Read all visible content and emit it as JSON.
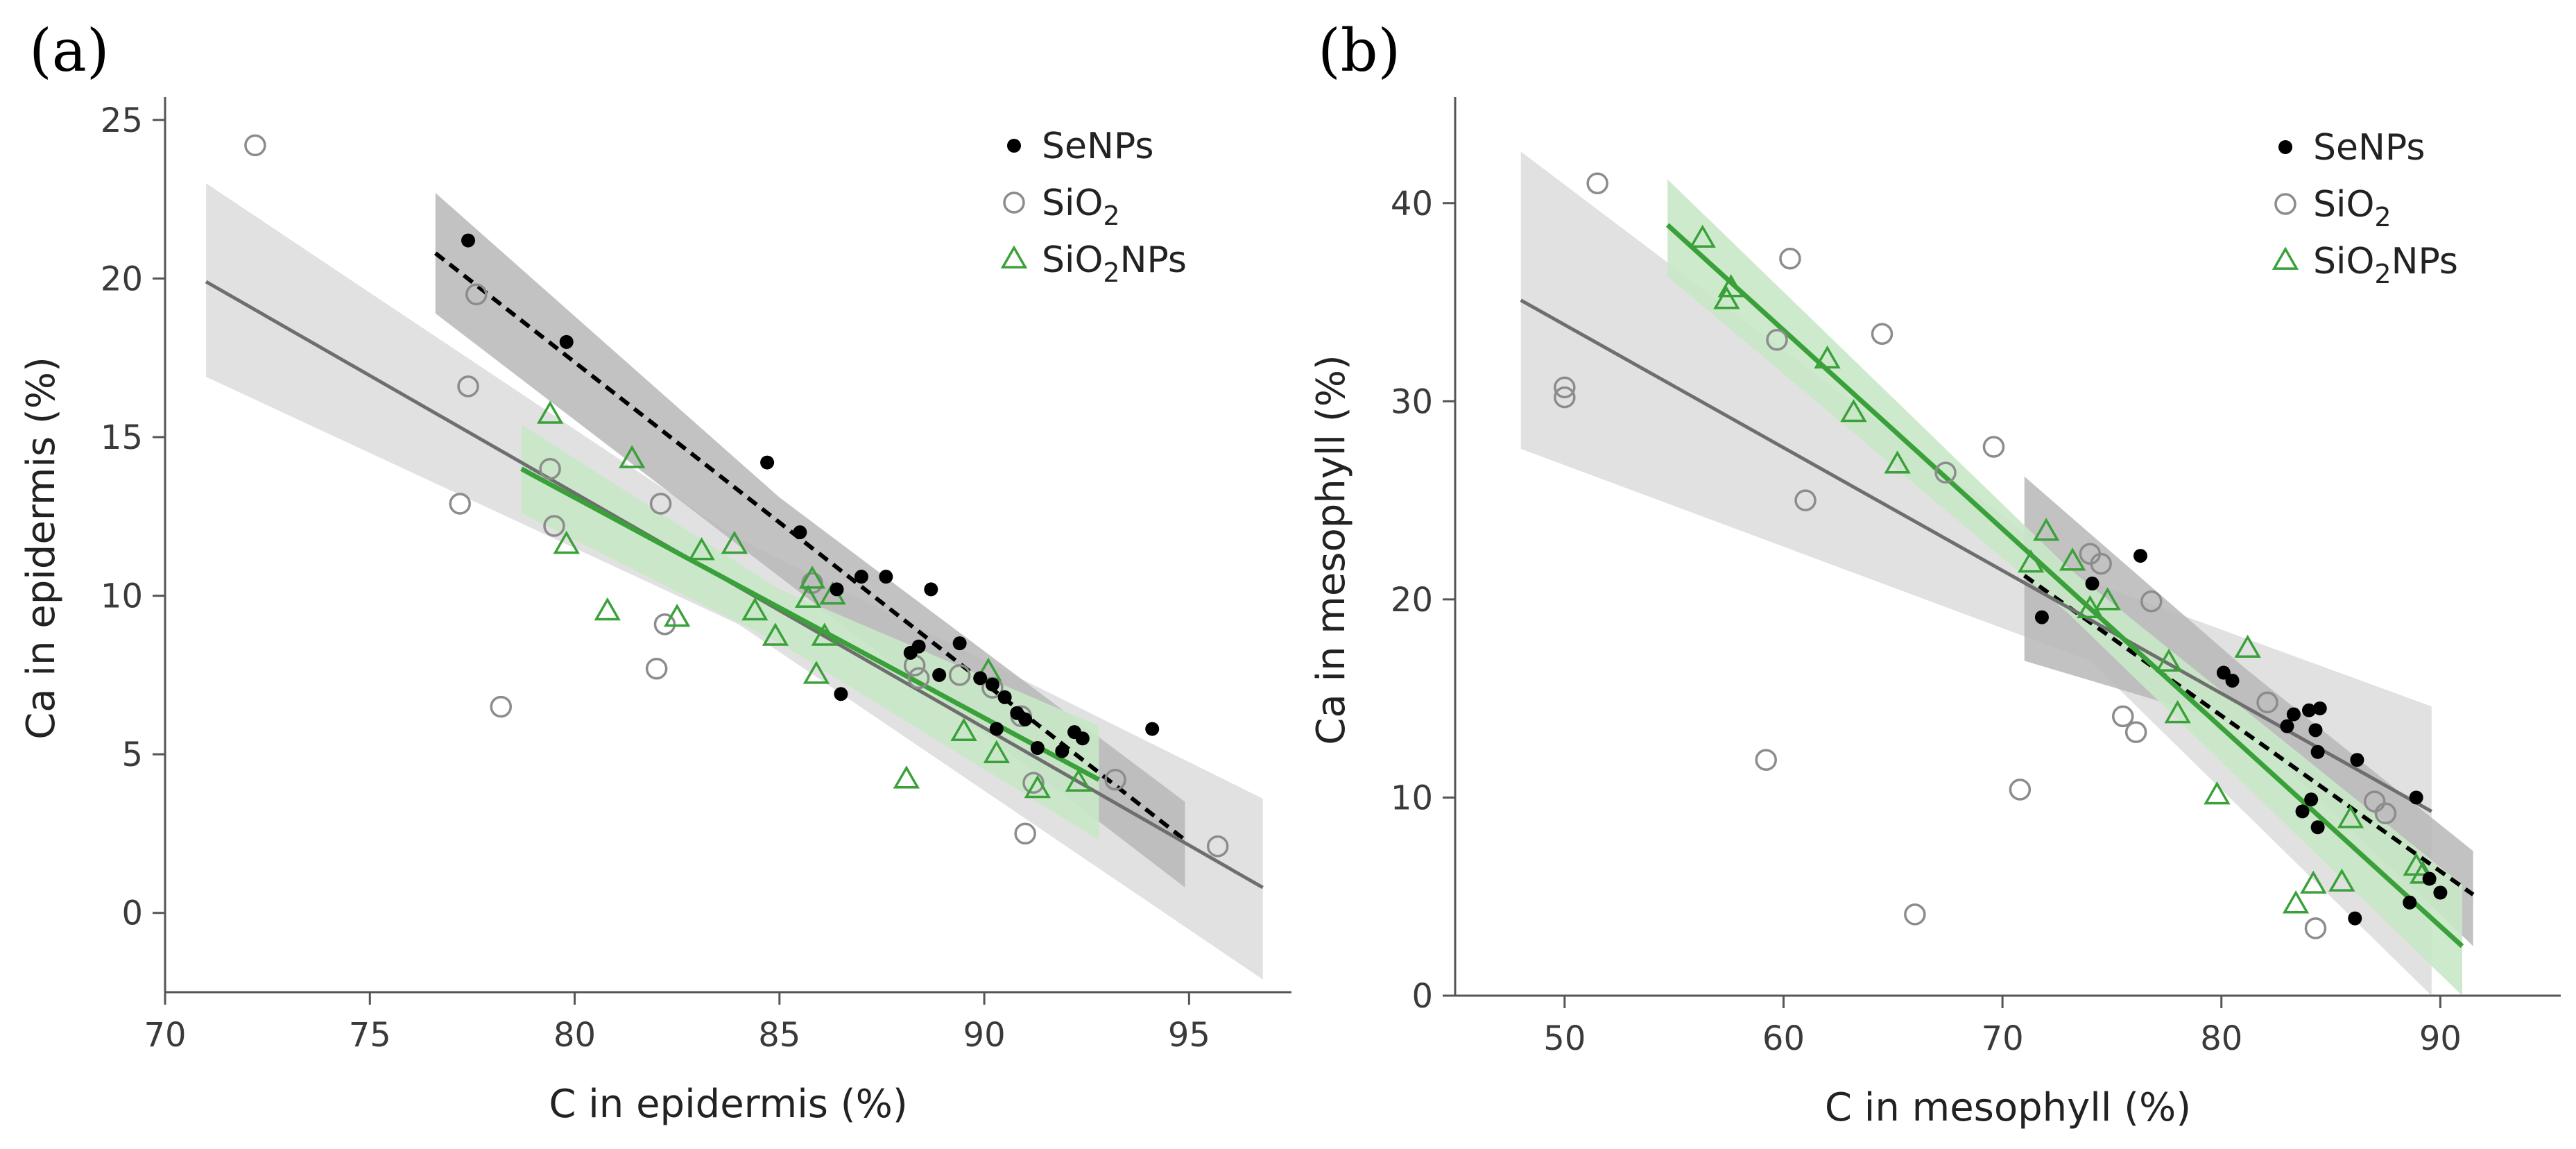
{
  "colors": {
    "senps": "#000000",
    "sio2": "#8c8c8c",
    "sio2nps": "#3aa13a",
    "band_dark": "#b7b7b7",
    "band_light": "#dedede",
    "band_green": "#c9e8c6"
  },
  "chart_data": [
    {
      "type": "scatter",
      "panel_label": "(a)",
      "xlabel": "C in epidermis (%)",
      "ylabel": "Ca in epidermis (%)",
      "xlim": [
        70,
        97.5
      ],
      "ylim": [
        -2.5,
        25.5
      ],
      "xticks": [
        70,
        75,
        80,
        85,
        90,
        95
      ],
      "yticks": [
        0,
        5,
        10,
        15,
        20,
        25
      ],
      "legend_position": "top-right",
      "series": [
        {
          "name": "SeNPs",
          "legend_text": "SeNPs",
          "marker": "filled-circle",
          "color": "#000000",
          "points": [
            [
              77.4,
              21.2
            ],
            [
              79.8,
              18.0
            ],
            [
              84.7,
              14.2
            ],
            [
              85.5,
              12.0
            ],
            [
              86.4,
              10.2
            ],
            [
              86.5,
              6.9
            ],
            [
              87.0,
              10.6
            ],
            [
              87.6,
              10.6
            ],
            [
              88.2,
              8.2
            ],
            [
              88.4,
              8.4
            ],
            [
              88.7,
              10.2
            ],
            [
              88.9,
              7.5
            ],
            [
              89.4,
              8.5
            ],
            [
              89.9,
              7.4
            ],
            [
              90.2,
              7.2
            ],
            [
              90.3,
              5.8
            ],
            [
              90.5,
              6.8
            ],
            [
              90.8,
              6.3
            ],
            [
              91.0,
              6.1
            ],
            [
              91.3,
              5.2
            ],
            [
              91.9,
              5.1
            ],
            [
              92.2,
              5.7
            ],
            [
              92.4,
              5.5
            ],
            [
              94.1,
              5.8
            ]
          ],
          "fit": {
            "style": "dashed",
            "x": [
              76.6,
              94.9
            ],
            "y": [
              20.8,
              2.3
            ]
          },
          "band": {
            "upper": [
              [
                76.6,
                22.7
              ],
              [
                85.0,
                13.1
              ],
              [
                94.9,
                3.5
              ]
            ],
            "lower": [
              [
                94.9,
                0.8
              ],
              [
                85.0,
                10.6
              ],
              [
                76.6,
                18.9
              ]
            ]
          }
        },
        {
          "name": "SiO2",
          "legend_text": "SiO",
          "legend_sub": "2",
          "marker": "open-circle",
          "color": "#8c8c8c",
          "points": [
            [
              72.2,
              24.2
            ],
            [
              77.2,
              12.9
            ],
            [
              77.4,
              16.6
            ],
            [
              77.6,
              19.5
            ],
            [
              78.2,
              6.5
            ],
            [
              79.4,
              14.0
            ],
            [
              79.5,
              12.2
            ],
            [
              82.0,
              7.7
            ],
            [
              82.1,
              12.9
            ],
            [
              82.2,
              9.1
            ],
            [
              85.8,
              10.4
            ],
            [
              88.3,
              7.8
            ],
            [
              88.4,
              7.4
            ],
            [
              89.4,
              7.5
            ],
            [
              90.2,
              7.1
            ],
            [
              90.9,
              6.2
            ],
            [
              91.0,
              2.5
            ],
            [
              91.2,
              4.1
            ],
            [
              93.2,
              4.2
            ],
            [
              95.7,
              2.1
            ]
          ],
          "fit": {
            "style": "solid",
            "x": [
              71.0,
              96.8
            ],
            "y": [
              19.9,
              0.8
            ]
          },
          "band": {
            "upper": [
              [
                71.0,
                23.0
              ],
              [
                84.0,
                11.8
              ],
              [
                96.8,
                3.6
              ]
            ],
            "lower": [
              [
                96.8,
                -2.1
              ],
              [
                84.0,
                9.1
              ],
              [
                71.0,
                16.9
              ]
            ]
          }
        },
        {
          "name": "SiO2NPs",
          "legend_text": "SiO",
          "legend_sub": "2",
          "legend_suffix": "NPs",
          "marker": "open-triangle",
          "color": "#3aa13a",
          "points": [
            [
              79.4,
              15.7
            ],
            [
              79.8,
              11.6
            ],
            [
              80.8,
              9.5
            ],
            [
              81.4,
              14.3
            ],
            [
              82.5,
              9.3
            ],
            [
              83.1,
              11.4
            ],
            [
              83.9,
              11.6
            ],
            [
              84.4,
              9.5
            ],
            [
              84.9,
              8.7
            ],
            [
              85.7,
              9.9
            ],
            [
              85.8,
              10.5
            ],
            [
              85.9,
              7.5
            ],
            [
              86.1,
              8.7
            ],
            [
              86.3,
              10.0
            ],
            [
              88.1,
              4.2
            ],
            [
              89.5,
              5.7
            ],
            [
              90.1,
              7.6
            ],
            [
              90.3,
              5.0
            ],
            [
              91.3,
              3.9
            ],
            [
              92.3,
              4.1
            ]
          ],
          "fit": {
            "style": "solid",
            "x": [
              78.7,
              92.8
            ],
            "y": [
              14.0,
              4.2
            ]
          },
          "band": {
            "upper": [
              [
                78.7,
                15.4
              ],
              [
                85.0,
                10.2
              ],
              [
                92.8,
                5.9
              ]
            ],
            "lower": [
              [
                92.8,
                2.3
              ],
              [
                85.0,
                8.5
              ],
              [
                78.7,
                12.6
              ]
            ]
          }
        }
      ]
    },
    {
      "type": "scatter",
      "panel_label": "(b)",
      "xlabel": "C in mesophyll (%)",
      "ylabel": "Ca in mesophyll (%)",
      "xlim": [
        45,
        95.5
      ],
      "ylim": [
        0,
        45
      ],
      "xticks": [
        50,
        60,
        70,
        80,
        90
      ],
      "yticks": [
        0,
        10,
        20,
        30,
        40
      ],
      "legend_position": "top-right",
      "series": [
        {
          "name": "SeNPs",
          "legend_text": "SeNPs",
          "marker": "filled-circle",
          "color": "#000000",
          "points": [
            [
              71.8,
              19.1
            ],
            [
              74.1,
              20.8
            ],
            [
              76.3,
              22.2
            ],
            [
              80.1,
              16.3
            ],
            [
              80.5,
              15.9
            ],
            [
              83.0,
              13.6
            ],
            [
              83.3,
              14.2
            ],
            [
              83.7,
              9.3
            ],
            [
              84.0,
              14.4
            ],
            [
              84.1,
              9.9
            ],
            [
              84.3,
              13.4
            ],
            [
              84.4,
              12.3
            ],
            [
              84.4,
              8.5
            ],
            [
              84.5,
              14.5
            ],
            [
              86.2,
              11.9
            ],
            [
              86.1,
              3.9
            ],
            [
              88.6,
              4.7
            ],
            [
              88.9,
              10.0
            ],
            [
              89.5,
              5.9
            ],
            [
              90.0,
              5.2
            ]
          ],
          "fit": {
            "style": "dashed",
            "x": [
              71.0,
              91.5
            ],
            "y": [
              21.2,
              5.1
            ]
          },
          "band": {
            "upper": [
              [
                71.0,
                26.2
              ],
              [
                81.0,
                16.6
              ],
              [
                91.5,
                7.3
              ]
            ],
            "lower": [
              [
                91.5,
                2.5
              ],
              [
                81.0,
                13.6
              ],
              [
                71.0,
                16.9
              ]
            ]
          }
        },
        {
          "name": "SiO2",
          "legend_text": "SiO",
          "legend_sub": "2",
          "marker": "open-circle",
          "color": "#8c8c8c",
          "points": [
            [
              50.0,
              30.7
            ],
            [
              50.0,
              30.2
            ],
            [
              51.5,
              41.0
            ],
            [
              59.2,
              11.9
            ],
            [
              59.7,
              33.1
            ],
            [
              60.3,
              37.2
            ],
            [
              61.0,
              25.0
            ],
            [
              64.5,
              33.4
            ],
            [
              66.0,
              4.1
            ],
            [
              67.4,
              26.4
            ],
            [
              69.6,
              27.7
            ],
            [
              70.8,
              10.4
            ],
            [
              74.0,
              22.3
            ],
            [
              74.5,
              21.8
            ],
            [
              75.5,
              14.1
            ],
            [
              76.1,
              13.3
            ],
            [
              76.8,
              19.9
            ],
            [
              82.1,
              14.8
            ],
            [
              84.3,
              3.4
            ],
            [
              87.0,
              9.8
            ],
            [
              87.5,
              9.2
            ]
          ],
          "fit": {
            "style": "solid",
            "x": [
              48.0,
              89.6
            ],
            "y": [
              35.1,
              9.3
            ]
          },
          "band": {
            "upper": [
              [
                48.0,
                42.6
              ],
              [
                74.0,
                20.9
              ],
              [
                89.6,
                14.6
              ]
            ],
            "lower": [
              [
                89.6,
                0.0
              ],
              [
                74.0,
                16.9
              ],
              [
                48.0,
                27.6
              ]
            ]
          }
        },
        {
          "name": "SiO2NPs",
          "legend_text": "SiO",
          "legend_sub": "2",
          "legend_suffix": "NPs",
          "marker": "open-triangle",
          "color": "#3aa13a",
          "points": [
            [
              56.3,
              38.2
            ],
            [
              57.4,
              35.1
            ],
            [
              57.6,
              35.7
            ],
            [
              62.0,
              32.1
            ],
            [
              63.2,
              29.4
            ],
            [
              65.2,
              26.8
            ],
            [
              71.3,
              21.8
            ],
            [
              72.0,
              23.4
            ],
            [
              73.2,
              21.9
            ],
            [
              74.0,
              19.5
            ],
            [
              74.8,
              19.9
            ],
            [
              77.6,
              16.8
            ],
            [
              78.0,
              14.2
            ],
            [
              79.8,
              10.1
            ],
            [
              81.2,
              17.5
            ],
            [
              83.4,
              4.6
            ],
            [
              84.2,
              5.6
            ],
            [
              85.5,
              5.7
            ],
            [
              85.9,
              8.9
            ],
            [
              88.9,
              6.5
            ],
            [
              89.2,
              6.1
            ]
          ],
          "fit": {
            "style": "solid",
            "x": [
              54.7,
              91.0
            ],
            "y": [
              38.9,
              2.5
            ]
          },
          "band": {
            "upper": [
              [
                54.7,
                41.2
              ],
              [
                73.0,
                21.6
              ],
              [
                91.0,
                5.6
              ]
            ],
            "lower": [
              [
                91.0,
                0.0
              ],
              [
                73.0,
                19.3
              ],
              [
                54.7,
                36.3
              ]
            ]
          }
        }
      ]
    }
  ]
}
